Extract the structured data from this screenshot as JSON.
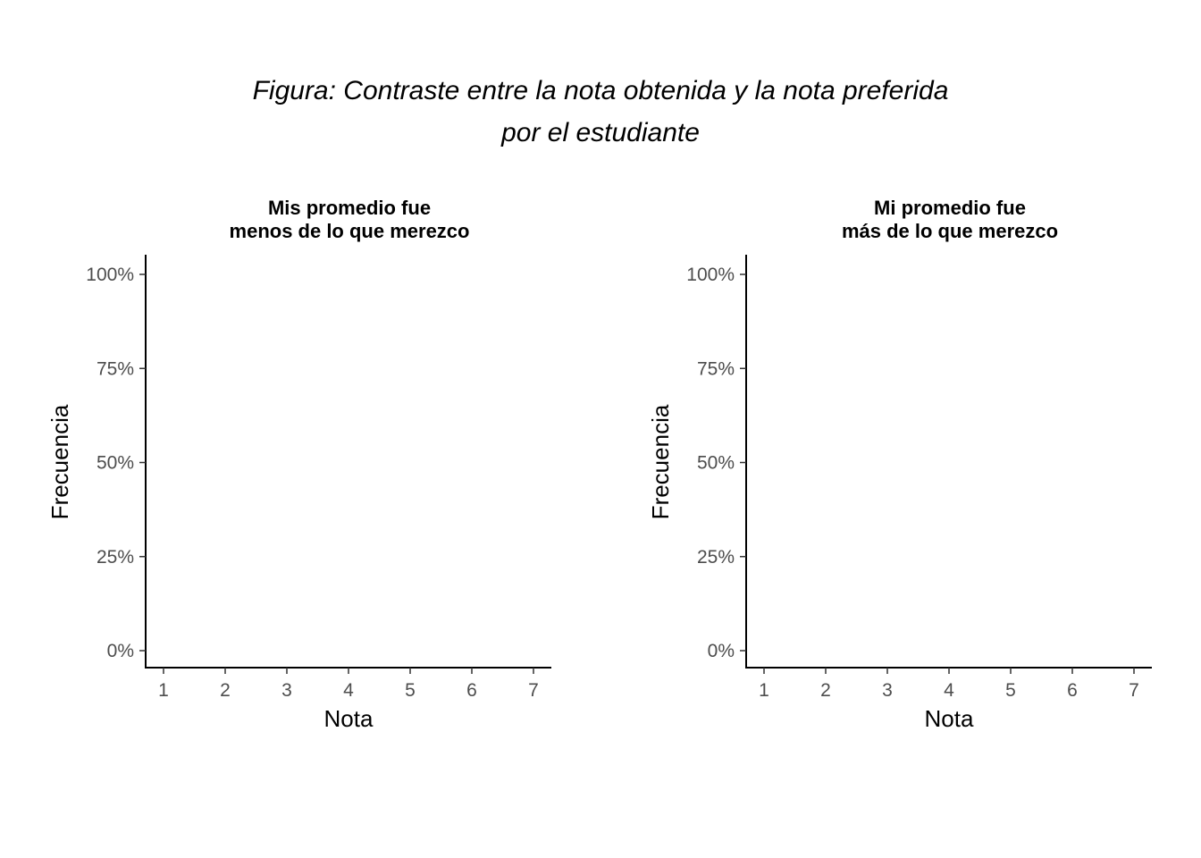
{
  "title_lines": [
    "Figura: Contraste entre la nota obtenida y la nota preferida",
    "por el estudiante"
  ],
  "chart_data": [
    {
      "type": "bar",
      "title_lines": [
        "Mis promedio fue",
        "menos de lo que merezco"
      ],
      "xlabel": "Nota",
      "ylabel": "Frecuencia",
      "categories": [
        "1",
        "2",
        "3",
        "4",
        "5",
        "6",
        "7"
      ],
      "y_ticks": [
        "0%",
        "25%",
        "50%",
        "75%",
        "100%"
      ],
      "ylim": [
        0,
        1
      ],
      "series": [],
      "grid": false
    },
    {
      "type": "bar",
      "title_lines": [
        "Mi promedio fue",
        "más de lo que merezco"
      ],
      "xlabel": "Nota",
      "ylabel": "Frecuencia",
      "categories": [
        "1",
        "2",
        "3",
        "4",
        "5",
        "6",
        "7"
      ],
      "y_ticks": [
        "0%",
        "25%",
        "50%",
        "75%",
        "100%"
      ],
      "ylim": [
        0,
        1
      ],
      "series": [],
      "grid": false
    }
  ]
}
